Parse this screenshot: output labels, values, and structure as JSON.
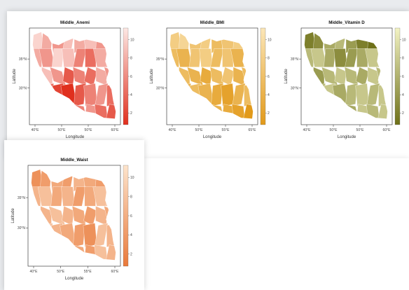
{
  "panels": [
    {
      "title": "Middle_Anemi",
      "xlabel": "Longitude",
      "ylabel": "Latitude",
      "xticks": [
        "40°E",
        "50°E",
        "50°E",
        "60°E"
      ],
      "yticks": [
        "35°N",
        "30°N"
      ],
      "colorbar_ticks": [
        "10",
        "8",
        "6",
        "4",
        "2"
      ],
      "color_low": "#fde8e4",
      "color_high": "#e0301e",
      "region_levels": [
        2,
        4,
        5,
        3,
        4,
        3,
        5,
        6,
        4,
        5,
        2,
        3,
        6,
        7,
        4,
        5,
        6,
        3,
        5,
        8,
        6,
        7,
        4,
        5,
        6,
        7,
        9,
        10,
        8,
        6,
        5,
        7,
        8,
        9,
        10,
        4,
        6,
        5,
        7,
        8
      ]
    },
    {
      "title": "Middle_BMI",
      "xlabel": "Longitude",
      "ylabel": "Latitude",
      "xticks": [
        "40°E",
        "50°E",
        "55°E",
        "65°E"
      ],
      "yticks": [
        "35°N",
        "30°N"
      ],
      "colorbar_ticks": [
        "10",
        "8",
        "6",
        "4",
        "2"
      ],
      "color_low": "#fbe6b8",
      "color_high": "#e29a1a",
      "region_levels": [
        4,
        3,
        5,
        4,
        6,
        5,
        4,
        5,
        6,
        7,
        5,
        4,
        6,
        5,
        7,
        6,
        5,
        6,
        7,
        8,
        6,
        5,
        7,
        6,
        8,
        7,
        6,
        7,
        8,
        9,
        7,
        6,
        8,
        7,
        9,
        8,
        7,
        8,
        9,
        10
      ]
    },
    {
      "title": "Middle_Vitamin D",
      "xlabel": "Longitude",
      "ylabel": "Latitude",
      "xticks": [
        "40°E",
        "50°E",
        "50°E",
        "60°E"
      ],
      "yticks": [
        "35°N",
        "30°N"
      ],
      "colorbar_ticks": [
        "10",
        "8",
        "6",
        "4",
        "2"
      ],
      "color_low": "#f3f3c4",
      "color_high": "#6e7018",
      "region_levels": [
        9,
        8,
        6,
        5,
        7,
        9,
        10,
        9,
        5,
        4,
        6,
        8,
        7,
        6,
        4,
        5,
        6,
        7,
        5,
        4,
        5,
        6,
        4,
        5,
        6,
        5,
        4,
        6,
        5,
        4,
        5,
        4,
        6,
        5,
        4,
        5,
        6,
        4,
        5,
        4
      ]
    },
    {
      "title": "Middle_Waist",
      "xlabel": "Longitude",
      "ylabel": "Latitude",
      "xticks": [
        "40°E",
        "50°E",
        "55°E",
        "60°E"
      ],
      "yticks": [
        "35°N",
        "30°N"
      ],
      "colorbar_ticks": [
        "10",
        "8",
        "6",
        "4",
        "2"
      ],
      "color_low": "#fde4cc",
      "color_high": "#e9793a",
      "region_levels": [
        8,
        7,
        6,
        7,
        5,
        6,
        7,
        6,
        5,
        4,
        6,
        5,
        7,
        6,
        4,
        5,
        6,
        5,
        4,
        5,
        6,
        7,
        5,
        6,
        5,
        4,
        5,
        6,
        7,
        8,
        4,
        5,
        6,
        5,
        4,
        5,
        6,
        7,
        4,
        5
      ]
    }
  ]
}
